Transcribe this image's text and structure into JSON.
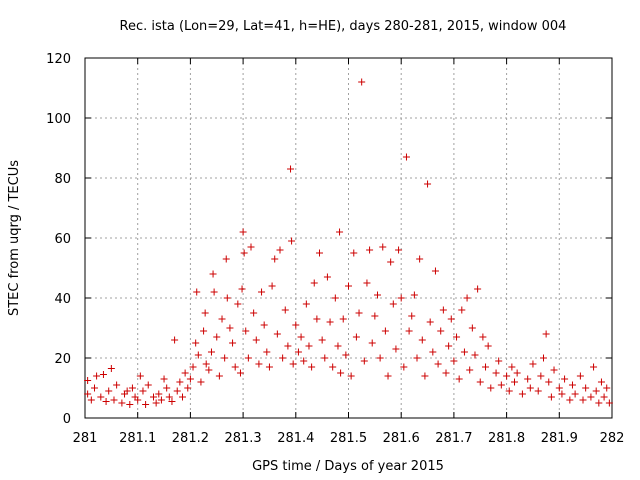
{
  "chart_data": {
    "type": "scatter",
    "title": "Rec. ista (Lon=29, Lat=41, h=HE), days 280-281, 2015, window 004",
    "xlabel": "GPS time / Days of year 2015",
    "ylabel": "STEC from uqrg / TECUs",
    "xlim": [
      281,
      282
    ],
    "ylim": [
      0,
      120
    ],
    "x_ticks": [
      281,
      281.1,
      281.2,
      281.3,
      281.4,
      281.5,
      281.6,
      281.7,
      281.8,
      281.9,
      282
    ],
    "x_tick_labels": [
      "281",
      "281.1",
      "281.2",
      "281.3",
      "281.4",
      "281.5",
      "281.6",
      "281.7",
      "281.8",
      "281.9",
      "282"
    ],
    "y_ticks": [
      0,
      20,
      40,
      60,
      80,
      100,
      120
    ],
    "y_tick_labels": [
      "0",
      "20",
      "40",
      "60",
      "80",
      "100",
      "120"
    ],
    "grid": true,
    "marker": "plus",
    "marker_color": "#cc0000",
    "series": [
      {
        "name": "STEC",
        "points": [
          [
            281.005,
            8
          ],
          [
            281.005,
            12.5
          ],
          [
            281.012,
            6
          ],
          [
            281.018,
            10
          ],
          [
            281.022,
            14
          ],
          [
            281.03,
            7
          ],
          [
            281.035,
            14.5
          ],
          [
            281.04,
            5.5
          ],
          [
            281.045,
            9
          ],
          [
            281.05,
            16.5
          ],
          [
            281.055,
            6
          ],
          [
            281.06,
            11
          ],
          [
            281.07,
            5
          ],
          [
            281.075,
            8
          ],
          [
            281.08,
            9
          ],
          [
            281.085,
            4.5
          ],
          [
            281.09,
            10
          ],
          [
            281.095,
            7
          ],
          [
            281.1,
            6
          ],
          [
            281.105,
            14
          ],
          [
            281.11,
            9
          ],
          [
            281.115,
            4.5
          ],
          [
            281.12,
            11
          ],
          [
            281.13,
            7
          ],
          [
            281.135,
            5
          ],
          [
            281.14,
            8
          ],
          [
            281.145,
            6
          ],
          [
            281.15,
            13
          ],
          [
            281.155,
            10
          ],
          [
            281.16,
            7
          ],
          [
            281.165,
            5.5
          ],
          [
            281.17,
            26
          ],
          [
            281.175,
            9
          ],
          [
            281.18,
            12
          ],
          [
            281.185,
            7
          ],
          [
            281.19,
            15
          ],
          [
            281.195,
            10
          ],
          [
            281.2,
            13
          ],
          [
            281.205,
            17
          ],
          [
            281.21,
            25
          ],
          [
            281.212,
            42
          ],
          [
            281.215,
            21
          ],
          [
            281.22,
            12
          ],
          [
            281.225,
            29
          ],
          [
            281.228,
            35
          ],
          [
            281.23,
            18
          ],
          [
            281.235,
            16
          ],
          [
            281.24,
            22
          ],
          [
            281.243,
            48
          ],
          [
            281.245,
            42
          ],
          [
            281.25,
            27
          ],
          [
            281.255,
            14
          ],
          [
            281.26,
            33
          ],
          [
            281.265,
            20
          ],
          [
            281.268,
            53
          ],
          [
            281.27,
            40
          ],
          [
            281.275,
            30
          ],
          [
            281.28,
            25
          ],
          [
            281.285,
            17
          ],
          [
            281.29,
            38
          ],
          [
            281.295,
            15
          ],
          [
            281.298,
            43
          ],
          [
            281.3,
            62
          ],
          [
            281.302,
            55
          ],
          [
            281.305,
            29
          ],
          [
            281.31,
            20
          ],
          [
            281.315,
            57
          ],
          [
            281.32,
            35
          ],
          [
            281.325,
            26
          ],
          [
            281.33,
            18
          ],
          [
            281.335,
            42
          ],
          [
            281.34,
            31
          ],
          [
            281.345,
            22
          ],
          [
            281.35,
            17
          ],
          [
            281.355,
            44
          ],
          [
            281.36,
            53
          ],
          [
            281.365,
            28
          ],
          [
            281.37,
            56
          ],
          [
            281.375,
            20
          ],
          [
            281.38,
            36
          ],
          [
            281.385,
            24
          ],
          [
            281.39,
            83
          ],
          [
            281.392,
            59
          ],
          [
            281.395,
            18
          ],
          [
            281.4,
            31
          ],
          [
            281.405,
            22
          ],
          [
            281.41,
            27
          ],
          [
            281.415,
            19
          ],
          [
            281.42,
            38
          ],
          [
            281.425,
            24
          ],
          [
            281.43,
            17
          ],
          [
            281.435,
            45
          ],
          [
            281.44,
            33
          ],
          [
            281.445,
            55
          ],
          [
            281.45,
            26
          ],
          [
            281.455,
            20
          ],
          [
            281.46,
            47
          ],
          [
            281.465,
            32
          ],
          [
            281.47,
            17
          ],
          [
            281.475,
            40
          ],
          [
            281.48,
            24
          ],
          [
            281.483,
            62
          ],
          [
            281.485,
            15
          ],
          [
            281.49,
            33
          ],
          [
            281.495,
            21
          ],
          [
            281.5,
            44
          ],
          [
            281.505,
            14
          ],
          [
            281.51,
            55
          ],
          [
            281.515,
            27
          ],
          [
            281.52,
            35
          ],
          [
            281.525,
            112
          ],
          [
            281.53,
            19
          ],
          [
            281.535,
            45
          ],
          [
            281.54,
            56
          ],
          [
            281.545,
            25
          ],
          [
            281.55,
            34
          ],
          [
            281.555,
            41
          ],
          [
            281.56,
            20
          ],
          [
            281.565,
            57
          ],
          [
            281.57,
            29
          ],
          [
            281.575,
            14
          ],
          [
            281.58,
            52
          ],
          [
            281.585,
            38
          ],
          [
            281.59,
            23
          ],
          [
            281.595,
            56
          ],
          [
            281.6,
            40
          ],
          [
            281.605,
            17
          ],
          [
            281.61,
            87
          ],
          [
            281.615,
            29
          ],
          [
            281.62,
            34
          ],
          [
            281.625,
            41
          ],
          [
            281.63,
            20
          ],
          [
            281.635,
            53
          ],
          [
            281.64,
            26
          ],
          [
            281.645,
            14
          ],
          [
            281.65,
            78
          ],
          [
            281.655,
            32
          ],
          [
            281.66,
            22
          ],
          [
            281.665,
            49
          ],
          [
            281.67,
            18
          ],
          [
            281.675,
            29
          ],
          [
            281.68,
            36
          ],
          [
            281.685,
            15
          ],
          [
            281.69,
            24
          ],
          [
            281.695,
            33
          ],
          [
            281.7,
            19
          ],
          [
            281.705,
            27
          ],
          [
            281.71,
            13
          ],
          [
            281.715,
            36
          ],
          [
            281.72,
            22
          ],
          [
            281.725,
            40
          ],
          [
            281.73,
            16
          ],
          [
            281.735,
            30
          ],
          [
            281.74,
            21
          ],
          [
            281.745,
            43
          ],
          [
            281.75,
            12
          ],
          [
            281.755,
            27
          ],
          [
            281.76,
            17
          ],
          [
            281.765,
            24
          ],
          [
            281.77,
            10
          ],
          [
            281.78,
            15
          ],
          [
            281.785,
            19
          ],
          [
            281.79,
            11
          ],
          [
            281.8,
            14
          ],
          [
            281.805,
            9
          ],
          [
            281.81,
            17
          ],
          [
            281.815,
            12
          ],
          [
            281.82,
            15
          ],
          [
            281.83,
            8
          ],
          [
            281.84,
            13
          ],
          [
            281.845,
            10
          ],
          [
            281.85,
            18
          ],
          [
            281.86,
            9
          ],
          [
            281.865,
            14
          ],
          [
            281.87,
            20
          ],
          [
            281.875,
            28
          ],
          [
            281.88,
            12
          ],
          [
            281.885,
            7
          ],
          [
            281.89,
            16
          ],
          [
            281.9,
            10
          ],
          [
            281.905,
            8
          ],
          [
            281.91,
            13
          ],
          [
            281.92,
            6
          ],
          [
            281.925,
            11
          ],
          [
            281.93,
            8
          ],
          [
            281.94,
            14
          ],
          [
            281.945,
            6
          ],
          [
            281.95,
            10
          ],
          [
            281.96,
            7
          ],
          [
            281.965,
            17
          ],
          [
            281.97,
            9
          ],
          [
            281.975,
            5
          ],
          [
            281.98,
            12
          ],
          [
            281.985,
            7
          ],
          [
            281.99,
            10
          ],
          [
            281.995,
            5
          ]
        ]
      }
    ]
  }
}
